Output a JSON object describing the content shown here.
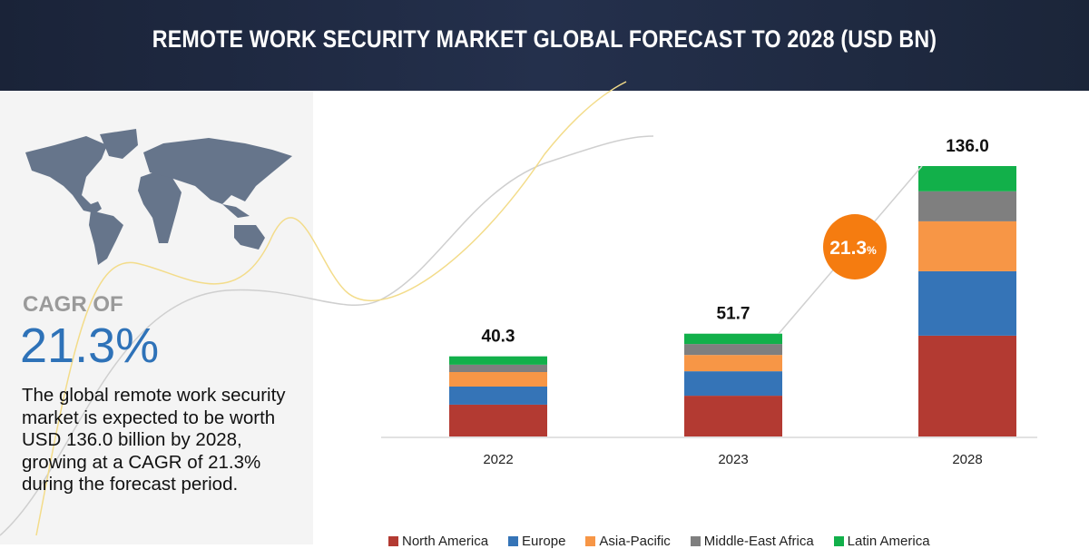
{
  "header": {
    "title": "REMOTE WORK SECURITY MARKET GLOBAL FORECAST TO 2028 (USD BN)"
  },
  "left_panel": {
    "cagr_label": "CAGR OF",
    "cagr_value": "21.3%",
    "description": "The global remote work security market is expected to be worth USD 136.0 billion by 2028, growing at a CAGR of 21.3% during the forecast period.",
    "map_icon": "world-map"
  },
  "chart_data": {
    "type": "bar",
    "stacked": true,
    "title": "REMOTE WORK SECURITY MARKET GLOBAL FORECAST TO 2028 (USD BN)",
    "categories": [
      "2022",
      "2023",
      "2028"
    ],
    "totals": [
      "40.3",
      "51.7",
      "136.0"
    ],
    "series": [
      {
        "name": "North America",
        "color": "#b33a32",
        "values": [
          16.0,
          20.5,
          50.7
        ]
      },
      {
        "name": "Europe",
        "color": "#3574b7",
        "values": [
          9.1,
          12.3,
          32.4
        ]
      },
      {
        "name": "Asia-Pacific",
        "color": "#f79646",
        "values": [
          7.3,
          8.2,
          25.1
        ]
      },
      {
        "name": "Middle-East Africa",
        "color": "#7f7f7f",
        "values": [
          3.7,
          5.5,
          15.1
        ]
      },
      {
        "name": "Latin America",
        "color": "#12b04a",
        "values": [
          4.2,
          5.2,
          12.7
        ]
      }
    ],
    "ylim": [
      0,
      136
    ],
    "grid": false,
    "legend_position": "bottom",
    "annotation": {
      "text": "21.3",
      "suffix": "%",
      "color": "#f57c10"
    }
  }
}
